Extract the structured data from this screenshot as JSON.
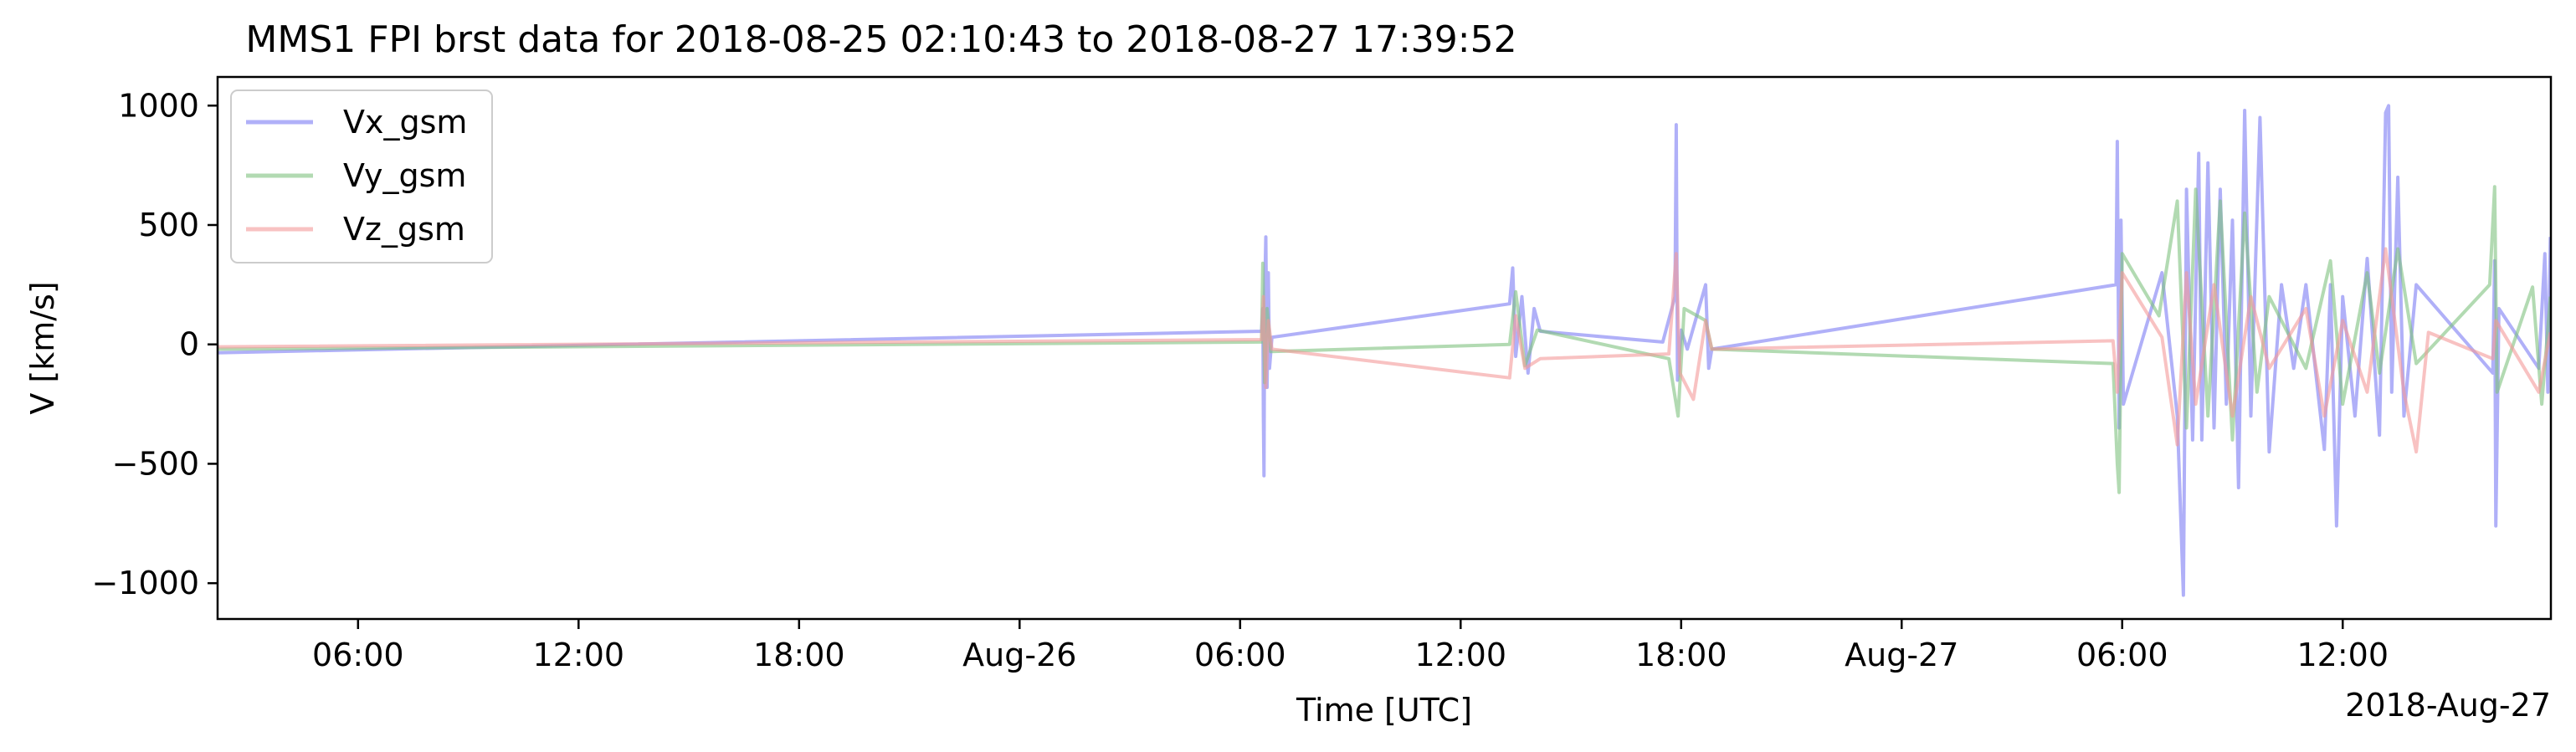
{
  "chart_data": {
    "type": "line",
    "title": "MMS1 FPI brst data for 2018-08-25 02:10:43 to 2018-08-27 17:39:52",
    "xlabel": "Time [UTC]",
    "ylabel": "V [km/s]",
    "x_offset_label": "2018-Aug-27",
    "xlim": [
      "2018-08-25T02:10:43",
      "2018-08-27T17:39:52"
    ],
    "ylim": [
      -1150,
      1120
    ],
    "x_ticks": [
      {
        "t": "2018-08-25T06:00",
        "label": "06:00"
      },
      {
        "t": "2018-08-25T12:00",
        "label": "12:00"
      },
      {
        "t": "2018-08-25T18:00",
        "label": "18:00"
      },
      {
        "t": "2018-08-26T00:00",
        "label": "Aug-26"
      },
      {
        "t": "2018-08-26T06:00",
        "label": "06:00"
      },
      {
        "t": "2018-08-26T12:00",
        "label": "12:00"
      },
      {
        "t": "2018-08-26T18:00",
        "label": "18:00"
      },
      {
        "t": "2018-08-27T00:00",
        "label": "Aug-27"
      },
      {
        "t": "2018-08-27T06:00",
        "label": "06:00"
      },
      {
        "t": "2018-08-27T12:00",
        "label": "12:00"
      }
    ],
    "y_ticks": [
      {
        "v": 1000,
        "label": "1000"
      },
      {
        "v": 500,
        "label": "500"
      },
      {
        "v": 0,
        "label": "0"
      },
      {
        "v": -500,
        "label": "−500"
      },
      {
        "v": -1000,
        "label": "−1000"
      }
    ],
    "legend": {
      "position": "upper left"
    },
    "grid": false,
    "series": [
      {
        "name": "Vx_gsm",
        "color": "#7b7bf4",
        "points": [
          [
            "2018-08-25T02:10",
            -35
          ],
          [
            "2018-08-26T06:35",
            55
          ],
          [
            "2018-08-26T06:37",
            150
          ],
          [
            "2018-08-26T06:38",
            -300
          ],
          [
            "2018-08-26T06:39",
            -550
          ],
          [
            "2018-08-26T06:40",
            200
          ],
          [
            "2018-08-26T06:42",
            450
          ],
          [
            "2018-08-26T06:44",
            -180
          ],
          [
            "2018-08-26T06:46",
            300
          ],
          [
            "2018-08-26T06:48",
            -100
          ],
          [
            "2018-08-26T06:52",
            30
          ],
          [
            "2018-08-26T13:20",
            170
          ],
          [
            "2018-08-26T13:25",
            320
          ],
          [
            "2018-08-26T13:30",
            -50
          ],
          [
            "2018-08-26T13:40",
            200
          ],
          [
            "2018-08-26T13:50",
            -120
          ],
          [
            "2018-08-26T14:00",
            150
          ],
          [
            "2018-08-26T14:10",
            55
          ],
          [
            "2018-08-26T17:30",
            10
          ],
          [
            "2018-08-26T17:50",
            200
          ],
          [
            "2018-08-26T17:52",
            920
          ],
          [
            "2018-08-26T17:54",
            -150
          ],
          [
            "2018-08-26T18:00",
            60
          ],
          [
            "2018-08-26T18:10",
            -20
          ],
          [
            "2018-08-26T18:40",
            250
          ],
          [
            "2018-08-26T18:45",
            -100
          ],
          [
            "2018-08-26T18:50",
            -20
          ],
          [
            "2018-08-27T05:50",
            250
          ],
          [
            "2018-08-27T05:52",
            850
          ],
          [
            "2018-08-27T05:55",
            -350
          ],
          [
            "2018-08-27T05:58",
            520
          ],
          [
            "2018-08-27T06:02",
            -250
          ],
          [
            "2018-08-27T07:05",
            300
          ],
          [
            "2018-08-27T07:30",
            -300
          ],
          [
            "2018-08-27T07:40",
            -1050
          ],
          [
            "2018-08-27T07:45",
            650
          ],
          [
            "2018-08-27T07:55",
            -400
          ],
          [
            "2018-08-27T08:05",
            800
          ],
          [
            "2018-08-27T08:10",
            -400
          ],
          [
            "2018-08-27T08:20",
            760
          ],
          [
            "2018-08-27T08:30",
            -350
          ],
          [
            "2018-08-27T08:40",
            650
          ],
          [
            "2018-08-27T08:50",
            -250
          ],
          [
            "2018-08-27T09:00",
            520
          ],
          [
            "2018-08-27T09:10",
            -600
          ],
          [
            "2018-08-27T09:20",
            980
          ],
          [
            "2018-08-27T09:30",
            -300
          ],
          [
            "2018-08-27T09:45",
            950
          ],
          [
            "2018-08-27T10:00",
            -450
          ],
          [
            "2018-08-27T10:20",
            250
          ],
          [
            "2018-08-27T10:40",
            -100
          ],
          [
            "2018-08-27T11:00",
            250
          ],
          [
            "2018-08-27T11:30",
            -440
          ],
          [
            "2018-08-27T11:40",
            250
          ],
          [
            "2018-08-27T11:50",
            -760
          ],
          [
            "2018-08-27T12:00",
            200
          ],
          [
            "2018-08-27T12:20",
            -300
          ],
          [
            "2018-08-27T12:40",
            360
          ],
          [
            "2018-08-27T13:00",
            -380
          ],
          [
            "2018-08-27T13:10",
            970
          ],
          [
            "2018-08-27T13:15",
            1000
          ],
          [
            "2018-08-27T13:20",
            -200
          ],
          [
            "2018-08-27T13:30",
            700
          ],
          [
            "2018-08-27T13:40",
            -300
          ],
          [
            "2018-08-27T14:00",
            250
          ],
          [
            "2018-08-27T16:05",
            -120
          ],
          [
            "2018-08-27T16:08",
            350
          ],
          [
            "2018-08-27T16:10",
            -760
          ],
          [
            "2018-08-27T16:15",
            150
          ],
          [
            "2018-08-27T17:20",
            -100
          ],
          [
            "2018-08-27T17:30",
            380
          ],
          [
            "2018-08-27T17:35",
            -200
          ],
          [
            "2018-08-27T17:39",
            450
          ]
        ]
      },
      {
        "name": "Vy_gsm",
        "color": "#7fc27f",
        "points": [
          [
            "2018-08-25T02:10",
            -20
          ],
          [
            "2018-08-26T06:35",
            10
          ],
          [
            "2018-08-26T06:37",
            340
          ],
          [
            "2018-08-26T06:40",
            -160
          ],
          [
            "2018-08-26T06:44",
            150
          ],
          [
            "2018-08-26T06:50",
            -30
          ],
          [
            "2018-08-26T13:20",
            0
          ],
          [
            "2018-08-26T13:30",
            220
          ],
          [
            "2018-08-26T13:45",
            -90
          ],
          [
            "2018-08-26T14:05",
            60
          ],
          [
            "2018-08-26T17:40",
            -60
          ],
          [
            "2018-08-26T17:55",
            -300
          ],
          [
            "2018-08-26T18:05",
            150
          ],
          [
            "2018-08-26T18:40",
            100
          ],
          [
            "2018-08-26T18:50",
            -20
          ],
          [
            "2018-08-27T05:45",
            -80
          ],
          [
            "2018-08-27T05:52",
            -500
          ],
          [
            "2018-08-27T05:55",
            -620
          ],
          [
            "2018-08-27T06:00",
            380
          ],
          [
            "2018-08-27T07:00",
            120
          ],
          [
            "2018-08-27T07:30",
            600
          ],
          [
            "2018-08-27T07:45",
            -350
          ],
          [
            "2018-08-27T08:00",
            650
          ],
          [
            "2018-08-27T08:20",
            -300
          ],
          [
            "2018-08-27T08:40",
            600
          ],
          [
            "2018-08-27T09:00",
            -400
          ],
          [
            "2018-08-27T09:20",
            550
          ],
          [
            "2018-08-27T09:40",
            -200
          ],
          [
            "2018-08-27T10:00",
            200
          ],
          [
            "2018-08-27T11:00",
            -100
          ],
          [
            "2018-08-27T11:40",
            350
          ],
          [
            "2018-08-27T12:00",
            -250
          ],
          [
            "2018-08-27T12:40",
            300
          ],
          [
            "2018-08-27T13:00",
            -120
          ],
          [
            "2018-08-27T13:30",
            400
          ],
          [
            "2018-08-27T14:00",
            -80
          ],
          [
            "2018-08-27T16:00",
            250
          ],
          [
            "2018-08-27T16:08",
            660
          ],
          [
            "2018-08-27T16:12",
            -200
          ],
          [
            "2018-08-27T17:10",
            240
          ],
          [
            "2018-08-27T17:25",
            -250
          ],
          [
            "2018-08-27T17:39",
            200
          ]
        ]
      },
      {
        "name": "Vz_gsm",
        "color": "#f49a9a",
        "points": [
          [
            "2018-08-25T02:10",
            -10
          ],
          [
            "2018-08-26T06:35",
            20
          ],
          [
            "2018-08-26T06:38",
            200
          ],
          [
            "2018-08-26T06:42",
            -180
          ],
          [
            "2018-08-26T06:46",
            100
          ],
          [
            "2018-08-26T06:52",
            -20
          ],
          [
            "2018-08-26T13:20",
            -140
          ],
          [
            "2018-08-26T13:30",
            120
          ],
          [
            "2018-08-26T13:45",
            -100
          ],
          [
            "2018-08-26T14:10",
            -60
          ],
          [
            "2018-08-26T17:40",
            -40
          ],
          [
            "2018-08-26T17:52",
            380
          ],
          [
            "2018-08-26T17:58",
            -120
          ],
          [
            "2018-08-26T18:20",
            -230
          ],
          [
            "2018-08-26T18:40",
            100
          ],
          [
            "2018-08-26T18:50",
            -20
          ],
          [
            "2018-08-27T05:45",
            15
          ],
          [
            "2018-08-27T05:52",
            -200
          ],
          [
            "2018-08-27T06:00",
            300
          ],
          [
            "2018-08-27T07:05",
            30
          ],
          [
            "2018-08-27T07:30",
            -420
          ],
          [
            "2018-08-27T07:45",
            300
          ],
          [
            "2018-08-27T08:00",
            -250
          ],
          [
            "2018-08-27T08:30",
            250
          ],
          [
            "2018-08-27T09:00",
            -300
          ],
          [
            "2018-08-27T09:30",
            200
          ],
          [
            "2018-08-27T10:00",
            -100
          ],
          [
            "2018-08-27T11:00",
            150
          ],
          [
            "2018-08-27T11:30",
            -300
          ],
          [
            "2018-08-27T12:00",
            100
          ],
          [
            "2018-08-27T12:40",
            -200
          ],
          [
            "2018-08-27T13:10",
            400
          ],
          [
            "2018-08-27T13:40",
            -200
          ],
          [
            "2018-08-27T14:00",
            -450
          ],
          [
            "2018-08-27T14:20",
            50
          ],
          [
            "2018-08-27T16:05",
            -60
          ],
          [
            "2018-08-27T16:10",
            100
          ],
          [
            "2018-08-27T17:20",
            -200
          ],
          [
            "2018-08-27T17:39",
            50
          ]
        ]
      }
    ]
  }
}
